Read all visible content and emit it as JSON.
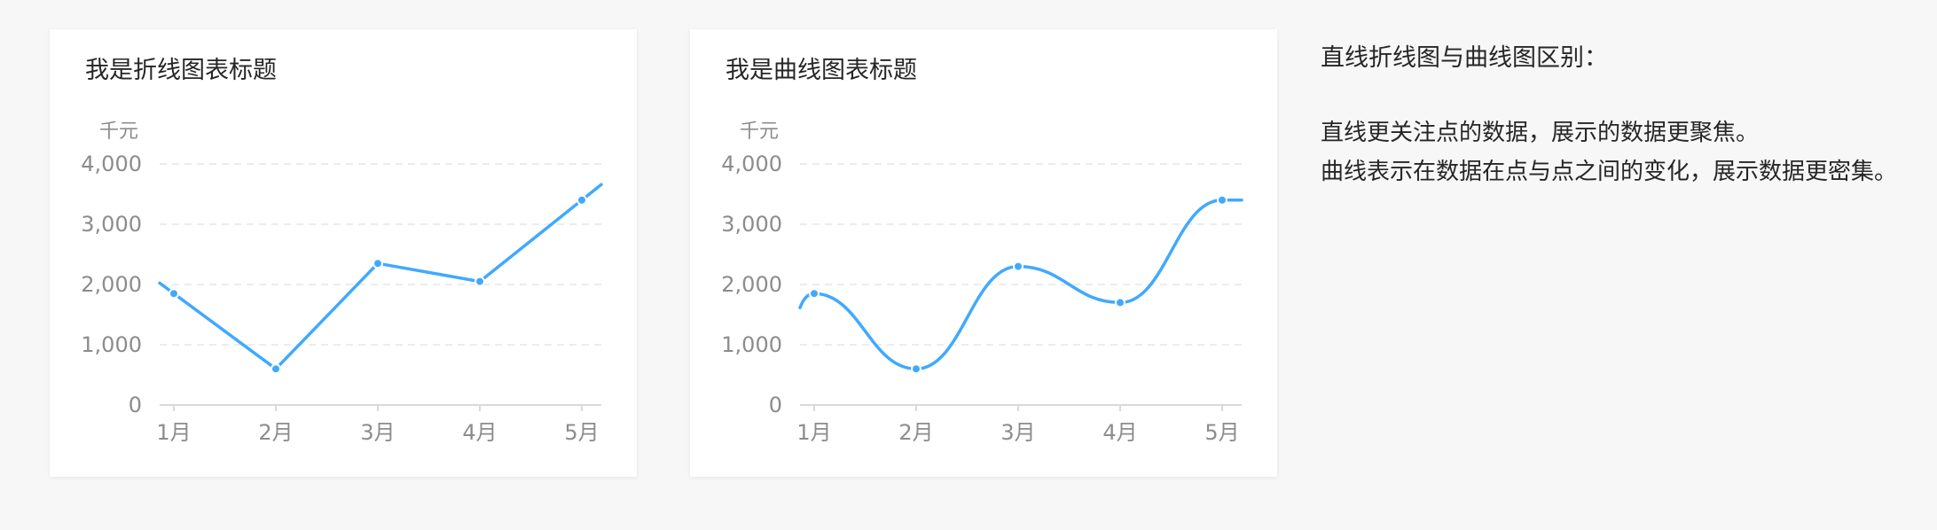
{
  "colors": {
    "line": "#40a9ff",
    "grid": "#e6e6e6",
    "axis": "#d9d9d9",
    "tick_text": "#8c8c8c"
  },
  "chart_data": [
    {
      "type": "line",
      "title": "我是折线图表标题",
      "unit": "千元",
      "categories": [
        "1月",
        "2月",
        "3月",
        "4月",
        "5月"
      ],
      "yticks": [
        "0",
        "1,000",
        "2,000",
        "3,000",
        "4,000"
      ],
      "ylim": [
        0,
        4000
      ],
      "grid": true,
      "smooth": false,
      "series": [
        {
          "values": [
            1850,
            600,
            2350,
            2050,
            3400
          ]
        }
      ]
    },
    {
      "type": "line",
      "title": "我是曲线图表标题",
      "unit": "千元",
      "categories": [
        "1月",
        "2月",
        "3月",
        "4月",
        "5月"
      ],
      "yticks": [
        "0",
        "1,000",
        "2,000",
        "3,000",
        "4,000"
      ],
      "ylim": [
        0,
        4000
      ],
      "grid": true,
      "smooth": true,
      "series": [
        {
          "values": [
            1850,
            600,
            2300,
            1700,
            3400
          ]
        }
      ]
    }
  ],
  "note": {
    "title": "直线折线图与曲线图区别：",
    "paragraphs": [
      "直线更关注点的数据，展示的数据更聚焦。",
      "曲线表示在数据在点与点之间的变化，展示数据更密集。"
    ]
  }
}
